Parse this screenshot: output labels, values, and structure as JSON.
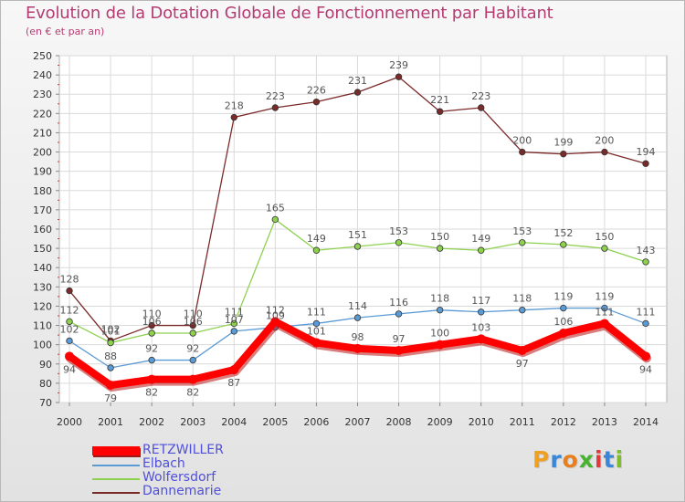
{
  "title": "Evolution de la Dotation Globale de Fonctionnement par Habitant",
  "subtitle": "(en € et par an)",
  "logo": {
    "chars": [
      "P",
      "r",
      "o",
      "x",
      "i",
      "t",
      "i"
    ],
    "colors": [
      "#f0a020",
      "#3a86d8",
      "#e87e1c",
      "#46b230",
      "#e13a3a",
      "#3a86d8",
      "#7dbe2a"
    ]
  },
  "chart_data": {
    "type": "line",
    "title": "Evolution de la Dotation Globale de Fonctionnement par Habitant",
    "subtitle": "(en € et par an)",
    "x": [
      "2000",
      "2001",
      "2002",
      "2003",
      "2004",
      "2005",
      "2006",
      "2007",
      "2008",
      "2009",
      "2010",
      "2011",
      "2012",
      "2013",
      "2014"
    ],
    "ylim": [
      70,
      250
    ],
    "yticks": [
      70,
      80,
      90,
      100,
      110,
      120,
      130,
      140,
      150,
      160,
      170,
      180,
      190,
      200,
      210,
      220,
      230,
      240,
      250
    ],
    "grid": true,
    "legend_position": "bottom-left",
    "series": [
      {
        "name": "RETZWILLER",
        "color": "#ff0000",
        "thick": true,
        "values": [
          94,
          79,
          82,
          82,
          87,
          112,
          101,
          98,
          97,
          100,
          103,
          97,
          106,
          111,
          94
        ]
      },
      {
        "name": "Elbach",
        "color": "#5b9bd5",
        "thick": false,
        "values": [
          102,
          88,
          92,
          92,
          107,
          109,
          111,
          114,
          116,
          118,
          117,
          118,
          119,
          119,
          111
        ]
      },
      {
        "name": "Wolfersdorf",
        "color": "#8ed14f",
        "thick": false,
        "values": [
          112,
          101,
          106,
          106,
          111,
          165,
          149,
          151,
          153,
          150,
          149,
          153,
          152,
          150,
          143
        ]
      },
      {
        "name": "Dannemarie",
        "color": "#7b2a2a",
        "thick": false,
        "values": [
          128,
          102,
          110,
          110,
          218,
          223,
          226,
          231,
          239,
          221,
          223,
          200,
          199,
          200,
          194
        ]
      }
    ]
  }
}
